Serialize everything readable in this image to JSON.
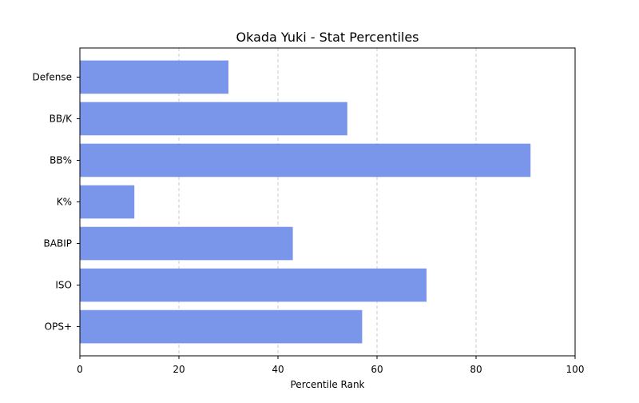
{
  "chart_data": {
    "type": "bar",
    "orientation": "horizontal",
    "title": "Okada Yuki - Stat Percentiles",
    "xlabel": "Percentile Rank",
    "ylabel": "",
    "xlim": [
      0,
      100
    ],
    "xticks": [
      "0",
      "20",
      "40",
      "60",
      "80",
      "100"
    ],
    "categories": [
      "OPS+",
      "ISO",
      "BABIP",
      "K%",
      "BB%",
      "BB/K",
      "Defense"
    ],
    "values": [
      57,
      70,
      43,
      11,
      91,
      54,
      30
    ],
    "bar_color": "#7a96ea",
    "grid": {
      "x": true,
      "y": false,
      "style": "dashed",
      "color": "#c8c8c8"
    },
    "legend": "none"
  }
}
